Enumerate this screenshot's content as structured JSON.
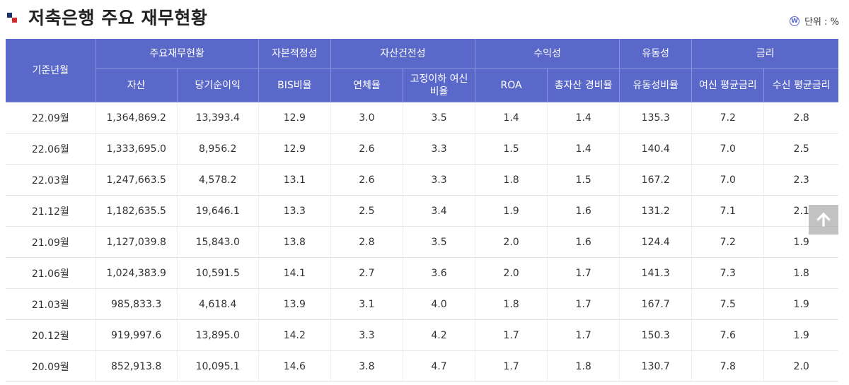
{
  "header": {
    "title": "저축은행 주요 재무현황",
    "unit_label": "단위 : %",
    "unit_icon": "W"
  },
  "table": {
    "row_header": "기준년월",
    "groups": [
      {
        "label": "주요재무현황",
        "cols": 2
      },
      {
        "label": "자본적정성",
        "cols": 1
      },
      {
        "label": "자산건전성",
        "cols": 2
      },
      {
        "label": "수익성",
        "cols": 2
      },
      {
        "label": "유동성",
        "cols": 1
      },
      {
        "label": "금리",
        "cols": 2
      }
    ],
    "columns": [
      "자산",
      "당기순이익",
      "BIS비율",
      "연체율",
      "고정이하 여신비율",
      "ROA",
      "총자산 경비율",
      "유동성비율",
      "여신 평균금리",
      "수신 평균금리"
    ],
    "rows": [
      [
        "22.09월",
        "1,364,869.2",
        "13,393.4",
        "12.9",
        "3.0",
        "3.5",
        "1.4",
        "1.4",
        "135.3",
        "7.2",
        "2.8"
      ],
      [
        "22.06월",
        "1,333,695.0",
        "8,956.2",
        "12.9",
        "2.6",
        "3.3",
        "1.5",
        "1.4",
        "140.4",
        "7.0",
        "2.5"
      ],
      [
        "22.03월",
        "1,247,663.5",
        "4,578.2",
        "13.1",
        "2.6",
        "3.3",
        "1.8",
        "1.5",
        "167.2",
        "7.0",
        "2.3"
      ],
      [
        "21.12월",
        "1,182,635.5",
        "19,646.1",
        "13.3",
        "2.5",
        "3.4",
        "1.9",
        "1.6",
        "131.2",
        "7.1",
        "2.1"
      ],
      [
        "21.09월",
        "1,127,039.8",
        "15,843.0",
        "13.8",
        "2.8",
        "3.5",
        "2.0",
        "1.6",
        "124.4",
        "7.2",
        "1.9"
      ],
      [
        "21.06월",
        "1,024,383.9",
        "10,591.5",
        "14.1",
        "2.7",
        "3.6",
        "2.0",
        "1.7",
        "141.3",
        "7.3",
        "1.8"
      ],
      [
        "21.03월",
        "985,833.3",
        "4,618.4",
        "13.9",
        "3.1",
        "4.0",
        "1.8",
        "1.7",
        "167.7",
        "7.5",
        "1.9"
      ],
      [
        "20.12월",
        "919,997.6",
        "13,895.0",
        "14.2",
        "3.3",
        "4.2",
        "1.7",
        "1.7",
        "150.3",
        "7.6",
        "1.9"
      ],
      [
        "20.09월",
        "852,913.8",
        "10,095.1",
        "14.6",
        "3.8",
        "4.7",
        "1.7",
        "1.8",
        "130.7",
        "7.8",
        "2.0"
      ]
    ]
  },
  "scroll_top_icon": "arrow-up-icon",
  "colors": {
    "header_bg": "#5a68c9",
    "logo_navy": "#1a2f6e",
    "logo_red": "#d62b2b"
  }
}
